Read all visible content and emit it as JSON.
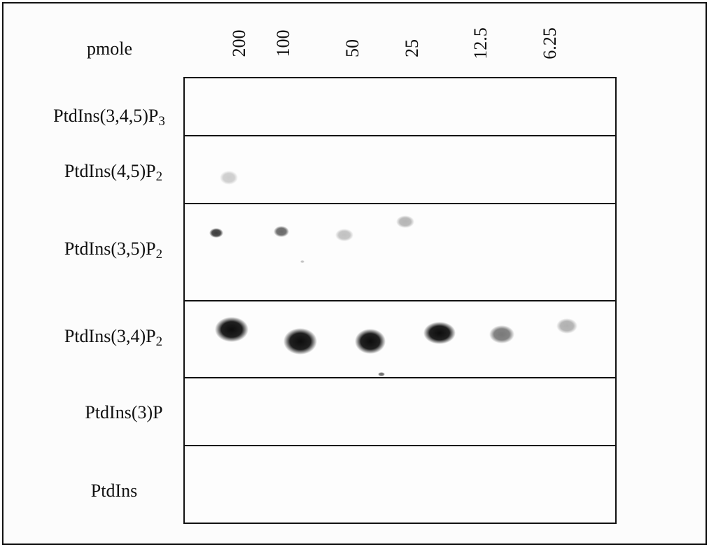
{
  "figure": {
    "unit_label": "pmole",
    "amounts": [
      "200",
      "100",
      "50",
      "25",
      "12.5",
      "6.25"
    ],
    "lipids": [
      {
        "name": "PtdIns(3,4,5)P",
        "subscript": "3"
      },
      {
        "name": "PtdIns(4,5)P",
        "subscript": "2"
      },
      {
        "name": "PtdIns(3,5)P",
        "subscript": "2"
      },
      {
        "name": "PtdIns(3,4)P",
        "subscript": "2"
      },
      {
        "name": "PtdIns(3)P",
        "subscript": ""
      },
      {
        "name": "PtdIns",
        "subscript": ""
      }
    ],
    "spot_color": "#0d0d0d",
    "membrane_color": "#fdfdfd",
    "border_color": "#111111"
  }
}
